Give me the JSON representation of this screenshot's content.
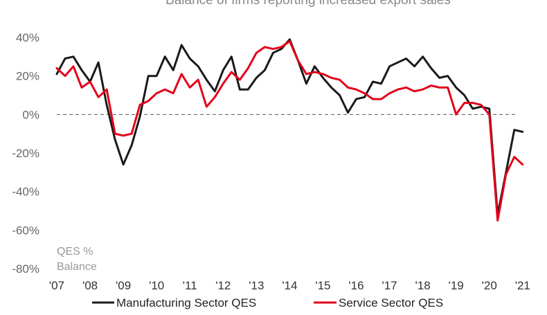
{
  "chart_data": {
    "type": "line",
    "title": "Balance of firms reporting increased export sales",
    "ylabel_lines": [
      "QES %",
      "Balance"
    ],
    "ylim": [
      -80,
      40
    ],
    "yticks": [
      {
        "v": 40,
        "label": "40%"
      },
      {
        "v": 20,
        "label": "20%"
      },
      {
        "v": 0,
        "label": "0%"
      },
      {
        "v": -20,
        "label": "-20%"
      },
      {
        "v": -40,
        "label": "-40%"
      },
      {
        "v": -60,
        "label": "-60%"
      },
      {
        "v": -80,
        "label": "-80%"
      }
    ],
    "xlim": [
      2007,
      2021.15
    ],
    "xticks": [
      {
        "v": 2007,
        "label": "'07"
      },
      {
        "v": 2008,
        "label": "'08"
      },
      {
        "v": 2009,
        "label": "'09"
      },
      {
        "v": 2010,
        "label": "'10"
      },
      {
        "v": 2011,
        "label": "'11"
      },
      {
        "v": 2012,
        "label": "'12"
      },
      {
        "v": 2013,
        "label": "'13"
      },
      {
        "v": 2014,
        "label": "'14"
      },
      {
        "v": 2015,
        "label": "'15"
      },
      {
        "v": 2016,
        "label": "'16"
      },
      {
        "v": 2017,
        "label": "'17"
      },
      {
        "v": 2018,
        "label": "'18"
      },
      {
        "v": 2019,
        "label": "'19"
      },
      {
        "v": 2020,
        "label": "'20"
      },
      {
        "v": 2021,
        "label": "'21"
      }
    ],
    "reference_line": 0,
    "legend_position": "bottom",
    "series": [
      {
        "name": "Manufacturing Sector QES",
        "color": "#1a1a1a",
        "points": [
          [
            2007.0,
            21
          ],
          [
            2007.25,
            29
          ],
          [
            2007.5,
            30
          ],
          [
            2007.75,
            23
          ],
          [
            2008.0,
            17
          ],
          [
            2008.25,
            27
          ],
          [
            2008.5,
            5
          ],
          [
            2008.75,
            -13
          ],
          [
            2009.0,
            -26
          ],
          [
            2009.25,
            -16
          ],
          [
            2009.5,
            -1
          ],
          [
            2009.75,
            20
          ],
          [
            2010.0,
            20
          ],
          [
            2010.25,
            30
          ],
          [
            2010.5,
            23
          ],
          [
            2010.75,
            36
          ],
          [
            2011.0,
            29
          ],
          [
            2011.25,
            25
          ],
          [
            2011.5,
            18
          ],
          [
            2011.75,
            12
          ],
          [
            2012.0,
            23
          ],
          [
            2012.25,
            30
          ],
          [
            2012.5,
            13
          ],
          [
            2012.75,
            13
          ],
          [
            2013.0,
            19
          ],
          [
            2013.25,
            23
          ],
          [
            2013.5,
            32
          ],
          [
            2013.75,
            34
          ],
          [
            2014.0,
            39
          ],
          [
            2014.25,
            28
          ],
          [
            2014.5,
            16
          ],
          [
            2014.75,
            25
          ],
          [
            2015.0,
            19
          ],
          [
            2015.25,
            14
          ],
          [
            2015.5,
            10
          ],
          [
            2015.75,
            1
          ],
          [
            2016.0,
            8
          ],
          [
            2016.25,
            9
          ],
          [
            2016.5,
            17
          ],
          [
            2016.75,
            16
          ],
          [
            2017.0,
            25
          ],
          [
            2017.25,
            27
          ],
          [
            2017.5,
            29
          ],
          [
            2017.75,
            25
          ],
          [
            2018.0,
            30
          ],
          [
            2018.25,
            24
          ],
          [
            2018.5,
            19
          ],
          [
            2018.75,
            20
          ],
          [
            2019.0,
            14
          ],
          [
            2019.25,
            10
          ],
          [
            2019.5,
            3
          ],
          [
            2019.75,
            4
          ],
          [
            2020.0,
            3
          ],
          [
            2020.25,
            -52
          ],
          [
            2020.5,
            -30
          ],
          [
            2020.75,
            -8
          ],
          [
            2021.0,
            -9
          ]
        ]
      },
      {
        "name": "Service Sector QES",
        "color": "#e3001b",
        "points": [
          [
            2007.0,
            24
          ],
          [
            2007.25,
            20
          ],
          [
            2007.5,
            25
          ],
          [
            2007.75,
            14
          ],
          [
            2008.0,
            17
          ],
          [
            2008.25,
            9
          ],
          [
            2008.5,
            13
          ],
          [
            2008.75,
            -10
          ],
          [
            2009.0,
            -11
          ],
          [
            2009.25,
            -10
          ],
          [
            2009.5,
            5
          ],
          [
            2009.75,
            7
          ],
          [
            2010.0,
            11
          ],
          [
            2010.25,
            13
          ],
          [
            2010.5,
            11
          ],
          [
            2010.75,
            21
          ],
          [
            2011.0,
            14
          ],
          [
            2011.25,
            18
          ],
          [
            2011.5,
            4
          ],
          [
            2011.75,
            9
          ],
          [
            2012.0,
            16
          ],
          [
            2012.25,
            22
          ],
          [
            2012.5,
            18
          ],
          [
            2012.75,
            24
          ],
          [
            2013.0,
            32
          ],
          [
            2013.25,
            35
          ],
          [
            2013.5,
            34
          ],
          [
            2013.75,
            35
          ],
          [
            2014.0,
            38
          ],
          [
            2014.25,
            28
          ],
          [
            2014.5,
            21
          ],
          [
            2014.75,
            22
          ],
          [
            2015.0,
            21
          ],
          [
            2015.25,
            19
          ],
          [
            2015.5,
            18
          ],
          [
            2015.75,
            14
          ],
          [
            2016.0,
            13
          ],
          [
            2016.25,
            11
          ],
          [
            2016.5,
            8
          ],
          [
            2016.75,
            8
          ],
          [
            2017.0,
            11
          ],
          [
            2017.25,
            13
          ],
          [
            2017.5,
            14
          ],
          [
            2017.75,
            12
          ],
          [
            2018.0,
            13
          ],
          [
            2018.25,
            15
          ],
          [
            2018.5,
            14
          ],
          [
            2018.75,
            14
          ],
          [
            2019.0,
            0
          ],
          [
            2019.25,
            6
          ],
          [
            2019.5,
            6
          ],
          [
            2019.75,
            5
          ],
          [
            2020.0,
            0
          ],
          [
            2020.25,
            -55
          ],
          [
            2020.5,
            -31
          ],
          [
            2020.75,
            -22
          ],
          [
            2021.0,
            -26
          ]
        ]
      }
    ]
  }
}
